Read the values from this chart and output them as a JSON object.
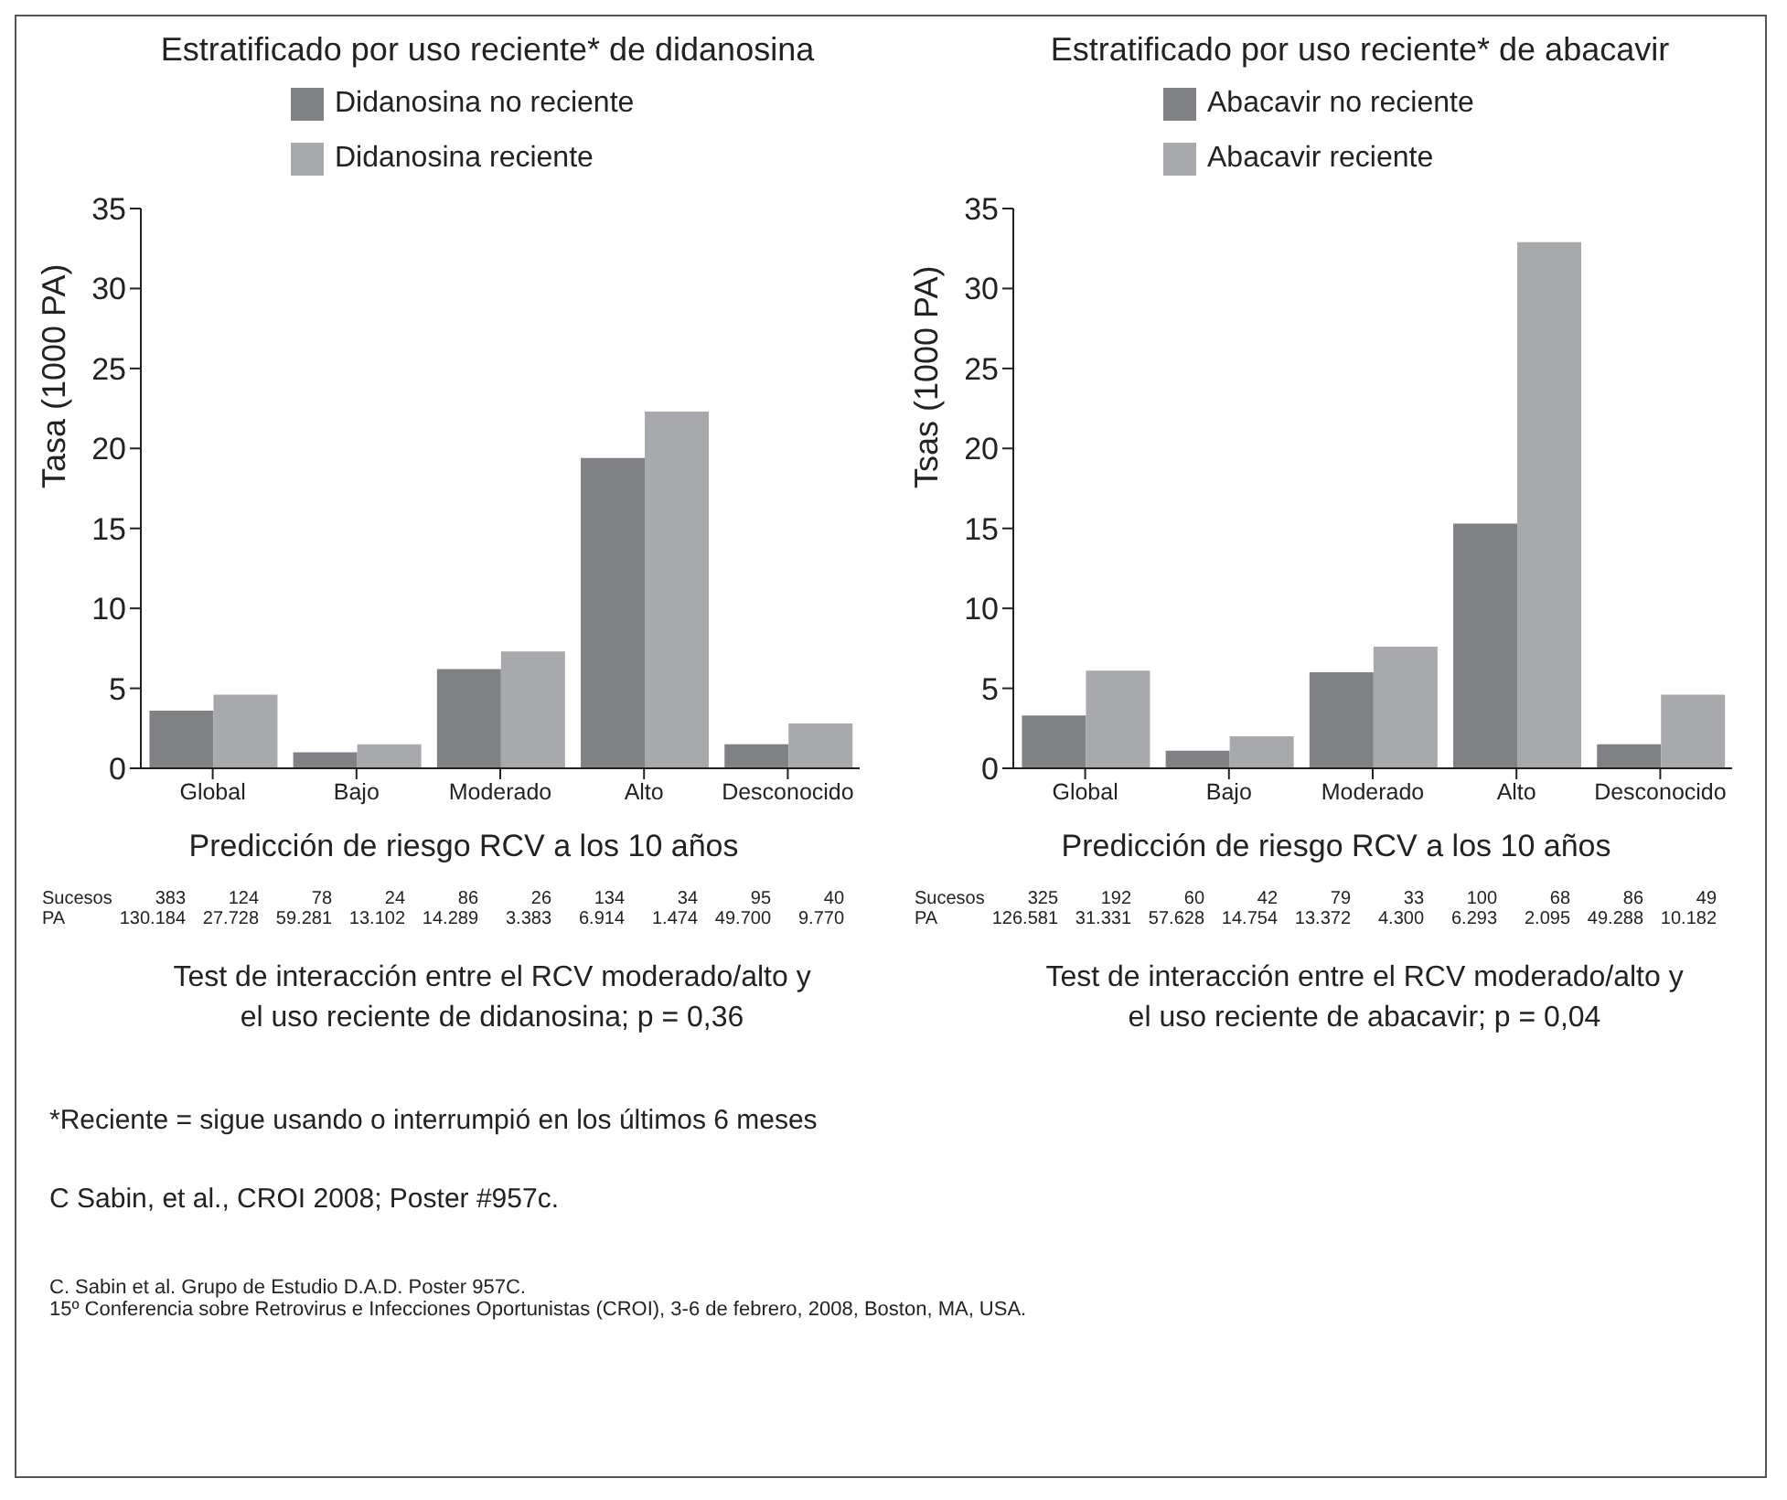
{
  "chart_data": [
    {
      "type": "bar",
      "title": "Estratificado por uso reciente* de didanosina",
      "xlabel": "Predicción de riesgo RCV a los 10 años",
      "ylabel": "Tasa (1000 PA)",
      "categories": [
        "Global",
        "Bajo",
        "Moderado",
        "Alto",
        "Desconocido"
      ],
      "series": [
        {
          "name": "Didanosina no reciente",
          "color": "#808185",
          "values": [
            3.6,
            1.0,
            6.2,
            19.4,
            1.5
          ]
        },
        {
          "name": "Didanosina reciente",
          "color": "#a8a9ad",
          "values": [
            4.6,
            1.5,
            7.3,
            22.3,
            2.8
          ]
        }
      ],
      "ylim": [
        0,
        35
      ],
      "yticks": [
        0,
        5,
        10,
        15,
        20,
        25,
        30,
        35
      ],
      "grid": false,
      "legend": "top",
      "annotations": [
        "Sucesos 383 124 78 24 86 26 134 34 95 40",
        "PA 130.184 27.728 59.281 13.102 14.289 3.383 6.914 1.474 49.700 9.770",
        "Test de interacción entre el RCV moderado/alto y el uso reciente de didanosina;  p = 0,36"
      ]
    },
    {
      "type": "bar",
      "title": "Estratificado por uso reciente* de abacavir",
      "xlabel": "Predicción de riesgo RCV a los 10 años",
      "ylabel": "Tsas (1000 PA)",
      "categories": [
        "Global",
        "Bajo",
        "Moderado",
        "Alto",
        "Desconocido"
      ],
      "series": [
        {
          "name": "Abacavir no reciente",
          "color": "#808185",
          "values": [
            3.3,
            1.1,
            6.0,
            15.3,
            1.5
          ]
        },
        {
          "name": "Abacavir reciente",
          "color": "#a8a9ad",
          "values": [
            6.1,
            2.0,
            7.6,
            32.9,
            4.6
          ]
        }
      ],
      "ylim": [
        0,
        35
      ],
      "yticks": [
        0,
        5,
        10,
        15,
        20,
        25,
        30,
        35
      ],
      "grid": false,
      "legend": "top",
      "annotations": [
        "Sucesos 325 192 60 42 79 33 100 68 86 49",
        "PA 126.581 31.331 57.628 14.754 13.372 4.300 6.293 2.095 49.288 10.182",
        "Test de interacción entre el RCV moderado/alto y el uso reciente de abacavir;  p = 0,04"
      ]
    },
    {
      "type": "other",
      "annotations": [
        "*Reciente = sigue usando o interrumpió en los últimos 6 meses",
        "C Sabin, et al., CROI 2008; Poster #957c.",
        "C. Sabin et al. Grupo de Estudio D.A.D.  Poster 957C.",
        "15º Conferencia sobre Retrovirus e Infecciones Oportunistas (CROI), 3-6 de febrero, 2008, Boston, MA, USA."
      ]
    }
  ]
}
